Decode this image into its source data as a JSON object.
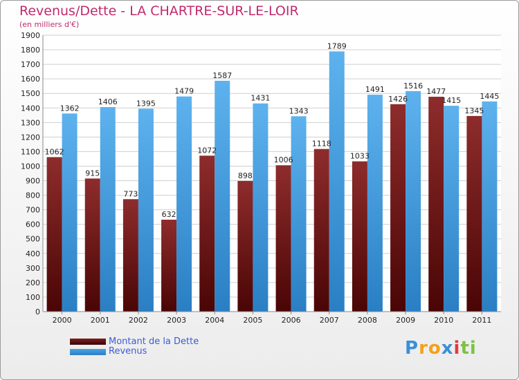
{
  "header": {
    "title": "Revenus/Dette - LA CHARTRE-SUR-LE-LOIR",
    "subtitle": "(en milliers d'€)"
  },
  "chart_data": {
    "type": "bar",
    "categories": [
      "2000",
      "2001",
      "2002",
      "2003",
      "2004",
      "2005",
      "2006",
      "2007",
      "2008",
      "2009",
      "2010",
      "2011"
    ],
    "series": [
      {
        "name": "Montant de la Dette",
        "color": "#7a1f1f",
        "values": [
          1062,
          915,
          773,
          632,
          1072,
          898,
          1006,
          1118,
          1033,
          1426,
          1477,
          1345
        ],
        "labels": [
          "1062",
          "915",
          "773",
          "632",
          "1072",
          "898",
          "1006",
          "1118",
          "1033",
          "1426",
          "1477",
          "1345"
        ]
      },
      {
        "name": "Revenus",
        "color": "#4ba3e3",
        "values": [
          1362,
          1406,
          1395,
          1479,
          1587,
          1431,
          1343,
          1789,
          1491,
          1516,
          1415,
          1445
        ],
        "labels": [
          "1362",
          "1406",
          "1395",
          "1479",
          "1587",
          "1431",
          "1343",
          "1789",
          "1491",
          "1516",
          "1415",
          "1445"
        ]
      }
    ],
    "ylim": [
      0,
      1900
    ],
    "yticks": [
      0,
      100,
      200,
      300,
      400,
      500,
      600,
      700,
      800,
      900,
      1000,
      1100,
      1200,
      1300,
      1400,
      1500,
      1600,
      1700,
      1800,
      1900
    ],
    "grid": true,
    "legend": "bottom-left"
  },
  "legend": {
    "debt_label": "Montant de la Dette",
    "revenue_label": "Revenus",
    "debt_color": "#7a1f1f",
    "revenue_color": "#4ba3e3"
  },
  "logo": {
    "text": "Proxiti",
    "letters": [
      "P",
      "r",
      "o",
      "x",
      "i",
      "t",
      "i"
    ],
    "colors": [
      "#3a8fd8",
      "#f2a21c",
      "#f2a21c",
      "#3a8fd8",
      "#e23b3b",
      "#7cc242",
      "#7cc242"
    ]
  }
}
